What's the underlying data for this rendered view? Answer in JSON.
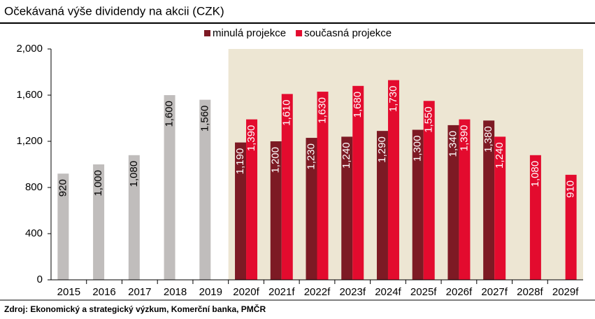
{
  "chart_data": {
    "type": "bar",
    "title": "Očekávaná výše dividendy na akcii (CZK)",
    "source": "Zdroj: Ekonomický a strategický výzkum, Komerční banka, PMČR",
    "categories": [
      "2015",
      "2016",
      "2017",
      "2018",
      "2019",
      "2020f",
      "2021f",
      "2022f",
      "2023f",
      "2024f",
      "2025f",
      "2026f",
      "2027f",
      "2028f",
      "2029f"
    ],
    "series": [
      {
        "color": "#c0bdbc",
        "values": [
          920,
          1000,
          1080,
          1600,
          1560,
          null,
          null,
          null,
          null,
          null,
          null,
          null,
          null,
          null,
          null
        ],
        "value_labels": [
          "920",
          "1,000",
          "1,080",
          "1,600",
          "1,560",
          null,
          null,
          null,
          null,
          null,
          null,
          null,
          null,
          null,
          null
        ]
      },
      {
        "name": "minulá projekce",
        "color": "#7d1a24",
        "values": [
          null,
          null,
          null,
          null,
          null,
          1190,
          1200,
          1230,
          1240,
          1290,
          1300,
          1340,
          1380,
          null,
          null
        ],
        "value_labels": [
          null,
          null,
          null,
          null,
          null,
          "1,190",
          "1,200",
          "1,230",
          "1,240",
          "1,290",
          "1,300",
          "1,340",
          "1,380",
          null,
          null
        ]
      },
      {
        "name": "současná projekce",
        "color": "#e30b2e",
        "values": [
          null,
          null,
          null,
          null,
          null,
          1390,
          1610,
          1630,
          1680,
          1730,
          1550,
          1390,
          1240,
          1080,
          910
        ],
        "value_labels": [
          null,
          null,
          null,
          null,
          null,
          "1,390",
          "1,610",
          "1,630",
          "1,680",
          "1,730",
          "1,550",
          "1,390",
          "1,240",
          "1,080",
          "910"
        ]
      }
    ],
    "ylim": [
      0,
      2000
    ],
    "yticks": [
      0,
      400,
      800,
      {
        "value": 1200,
        "label": "1,200"
      },
      {
        "value": 1600,
        "label": "1,600"
      },
      {
        "value": 2000,
        "label": "2,000"
      }
    ],
    "grid": false,
    "legend": "top"
  }
}
